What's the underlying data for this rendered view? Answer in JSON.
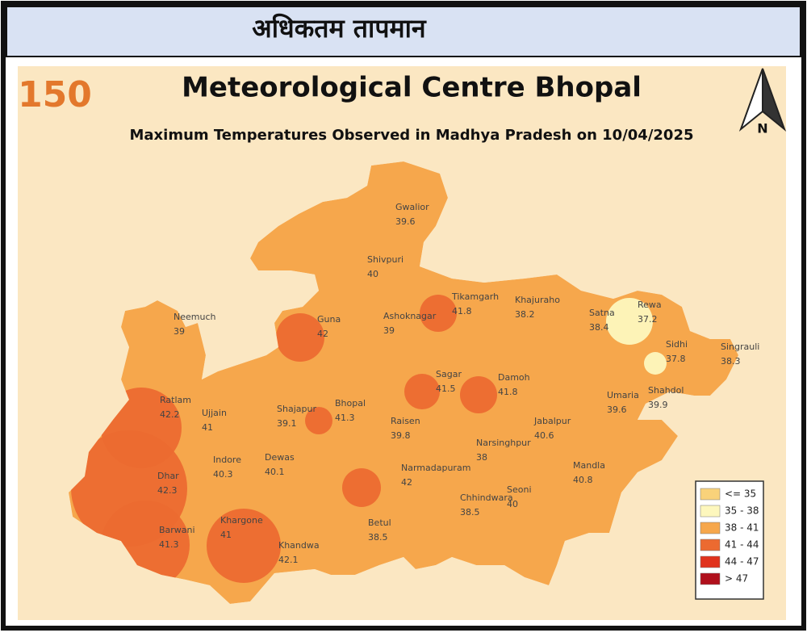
{
  "header": {
    "title": "अधिकतम तापमान"
  },
  "map": {
    "logo": "150",
    "title": "Meteorological Centre Bhopal",
    "subtitle": "Maximum Temperatures Observed in Madhya Pradesh on 10/04/2025",
    "north": "N",
    "base_color": "#f6a74c",
    "stations": [
      {
        "name": "Gwalior",
        "value": 39.6
      },
      {
        "name": "Shivpuri",
        "value": 40
      },
      {
        "name": "Neemuch",
        "value": 39
      },
      {
        "name": "Guna",
        "value": 42
      },
      {
        "name": "Ashoknagar",
        "value": 39
      },
      {
        "name": "Tikamgarh",
        "value": 41.8
      },
      {
        "name": "Khajuraho",
        "value": 38.2
      },
      {
        "name": "Satna",
        "value": 38.4
      },
      {
        "name": "Rewa",
        "value": 37.2
      },
      {
        "name": "Sidhi",
        "value": 37.8
      },
      {
        "name": "Singrauli",
        "value": 38.3
      },
      {
        "name": "Shahdol",
        "value": 39.9
      },
      {
        "name": "Umaria",
        "value": 39.6
      },
      {
        "name": "Sagar",
        "value": 41.5
      },
      {
        "name": "Damoh",
        "value": 41.8
      },
      {
        "name": "Ratlam",
        "value": 42.2
      },
      {
        "name": "Ujjain",
        "value": 41
      },
      {
        "name": "Shajapur",
        "value": 39.1
      },
      {
        "name": "Bhopal",
        "value": 41.3
      },
      {
        "name": "Raisen",
        "value": 39.8
      },
      {
        "name": "Jabalpur",
        "value": 40.6
      },
      {
        "name": "Narsinghpur",
        "value": 38
      },
      {
        "name": "Indore",
        "value": 40.3
      },
      {
        "name": "Dewas",
        "value": 40.1
      },
      {
        "name": "Dhar",
        "value": 42.3
      },
      {
        "name": "Narmadapuram",
        "value": 42
      },
      {
        "name": "Mandla",
        "value": 40.8
      },
      {
        "name": "Seoni",
        "value": 40
      },
      {
        "name": "Chhindwara",
        "value": 38.5
      },
      {
        "name": "Betul",
        "value": 38.5
      },
      {
        "name": "Khargone",
        "value": 41
      },
      {
        "name": "Barwani",
        "value": 41.3
      },
      {
        "name": "Khandwa",
        "value": 42.1
      }
    ],
    "legend": [
      {
        "label": "<= 35",
        "color": "#f9d27a"
      },
      {
        "label": "35 - 38",
        "color": "#fdf7bd"
      },
      {
        "label": "38 - 41",
        "color": "#f6a74c"
      },
      {
        "label": "41 - 44",
        "color": "#ec6a30"
      },
      {
        "label": "44 - 47",
        "color": "#e0321c"
      },
      {
        "label": "> 47",
        "color": "#b0101c"
      }
    ]
  }
}
